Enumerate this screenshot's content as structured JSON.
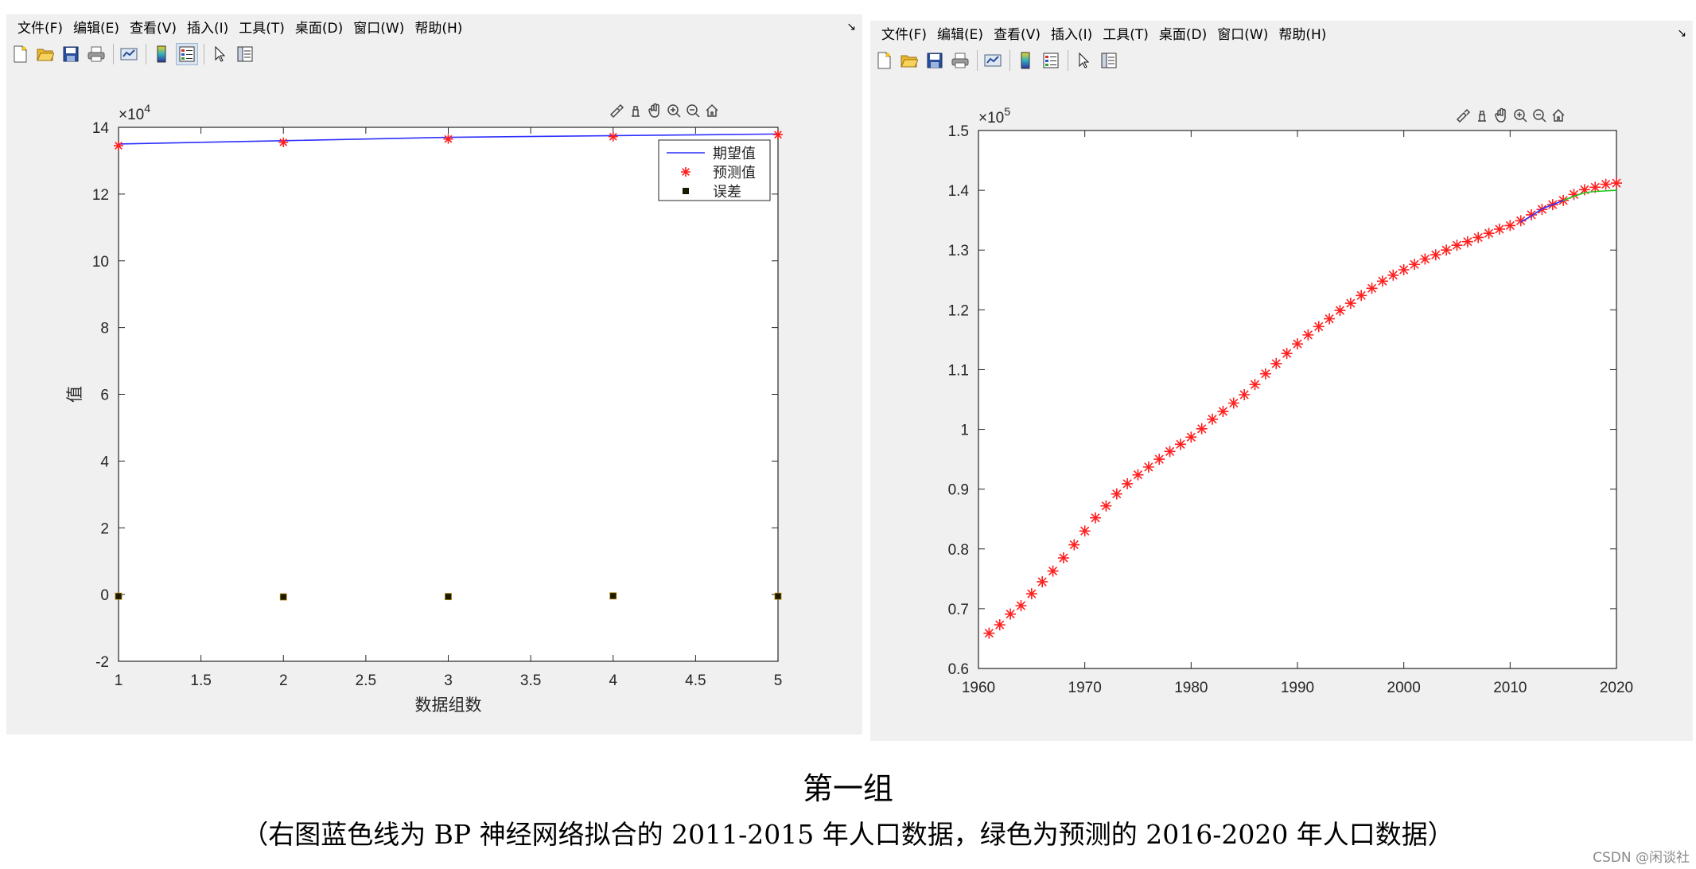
{
  "menu": [
    "文件(F)",
    "编辑(E)",
    "查看(V)",
    "插入(I)",
    "工具(T)",
    "桌面(D)",
    "窗口(W)",
    "帮助(H)"
  ],
  "toolbar_icons": [
    "new-file-icon",
    "open-folder-icon",
    "save-icon",
    "print-icon",
    "link-plot-icon",
    "colorbar-icon",
    "legend-icon",
    "pointer-icon",
    "property-inspector-icon"
  ],
  "axes_toolbar_icons": [
    "brush-icon",
    "data-tips-icon",
    "pan-icon",
    "zoom-in-icon",
    "zoom-out-icon",
    "home-icon"
  ],
  "chart_data": [
    {
      "type": "line",
      "title": "",
      "xlabel": "数据组数",
      "ylabel": "值",
      "y_exponent_label": "×10",
      "y_exponent": "4",
      "xlim": [
        1,
        5
      ],
      "ylim": [
        -2,
        14
      ],
      "x_ticks": [
        1,
        1.5,
        2,
        2.5,
        3,
        3.5,
        4,
        4.5,
        5
      ],
      "x_tick_labels": [
        "1",
        "1.5",
        "2",
        "2.5",
        "3",
        "3.5",
        "4",
        "4.5",
        "5"
      ],
      "y_ticks": [
        -2,
        0,
        2,
        4,
        6,
        8,
        10,
        12,
        14
      ],
      "y_tick_labels": [
        "-2",
        "0",
        "2",
        "4",
        "6",
        "8",
        "10",
        "12",
        "14"
      ],
      "legend_position": "top-right",
      "series": [
        {
          "name": "期望值",
          "style": "line",
          "color": "#2f2fff",
          "x": [
            1,
            2,
            3,
            4,
            5
          ],
          "y": [
            13.5,
            13.6,
            13.7,
            13.75,
            13.8
          ]
        },
        {
          "name": "预测值",
          "style": "asterisk",
          "color": "#ff1f1f",
          "x": [
            1,
            2,
            3,
            4,
            5
          ],
          "y": [
            13.45,
            13.55,
            13.65,
            13.72,
            13.78
          ]
        },
        {
          "name": "误差",
          "style": "square",
          "color": "#1a1a00",
          "x": [
            1,
            2,
            3,
            4,
            5
          ],
          "y": [
            -0.05,
            -0.07,
            -0.06,
            -0.04,
            -0.05
          ]
        }
      ]
    },
    {
      "type": "line",
      "title": "",
      "y_exponent_label": "×10",
      "y_exponent": "5",
      "xlim": [
        1960,
        2020
      ],
      "ylim": [
        0.6,
        1.5
      ],
      "x_ticks": [
        1960,
        1970,
        1980,
        1990,
        2000,
        2010,
        2020
      ],
      "x_tick_labels": [
        "1960",
        "1970",
        "1980",
        "1990",
        "2000",
        "2010",
        "2020"
      ],
      "y_ticks": [
        0.6,
        0.7,
        0.8,
        0.9,
        1.0,
        1.1,
        1.2,
        1.3,
        1.4,
        1.5
      ],
      "y_tick_labels": [
        "0.6",
        "0.7",
        "0.8",
        "0.9",
        "1",
        "1.1",
        "1.2",
        "1.3",
        "1.4",
        "1.5"
      ],
      "series": [
        {
          "style": "asterisk",
          "color": "#ff1f1f",
          "x": [
            1961,
            1962,
            1963,
            1964,
            1965,
            1966,
            1967,
            1968,
            1969,
            1970,
            1971,
            1972,
            1973,
            1974,
            1975,
            1976,
            1977,
            1978,
            1979,
            1980,
            1981,
            1982,
            1983,
            1984,
            1985,
            1986,
            1987,
            1988,
            1989,
            1990,
            1991,
            1992,
            1993,
            1994,
            1995,
            1996,
            1997,
            1998,
            1999,
            2000,
            2001,
            2002,
            2003,
            2004,
            2005,
            2006,
            2007,
            2008,
            2009,
            2010,
            2011,
            2012,
            2013,
            2014,
            2015,
            2016,
            2017,
            2018,
            2019,
            2020
          ],
          "y": [
            0.659,
            0.673,
            0.691,
            0.705,
            0.725,
            0.745,
            0.763,
            0.785,
            0.807,
            0.83,
            0.852,
            0.872,
            0.892,
            0.909,
            0.924,
            0.937,
            0.95,
            0.963,
            0.975,
            0.987,
            1.001,
            1.017,
            1.03,
            1.044,
            1.058,
            1.075,
            1.093,
            1.11,
            1.127,
            1.143,
            1.158,
            1.172,
            1.185,
            1.199,
            1.211,
            1.224,
            1.236,
            1.248,
            1.258,
            1.267,
            1.276,
            1.285,
            1.292,
            1.3,
            1.308,
            1.314,
            1.321,
            1.328,
            1.335,
            1.341,
            1.349,
            1.359,
            1.368,
            1.376,
            1.383,
            1.393,
            1.401,
            1.405,
            1.41,
            1.412
          ]
        },
        {
          "style": "line",
          "color": "#2f2fff",
          "x": [
            2011,
            2012,
            2013,
            2014,
            2015
          ],
          "y": [
            1.347,
            1.357,
            1.369,
            1.376,
            1.383
          ]
        },
        {
          "style": "line",
          "color": "#19c819",
          "x": [
            2015,
            2016,
            2017,
            2018,
            2019,
            2020
          ],
          "y": [
            1.383,
            1.39,
            1.396,
            1.398,
            1.399,
            1.4
          ]
        }
      ]
    }
  ],
  "caption": {
    "title": "第一组",
    "subtitle": "（右图蓝色线为 BP 神经网络拟合的 2011-2015 年人口数据，绿色为预测的 2016-2020 年人口数据）"
  },
  "watermark": "CSDN @闲谈社"
}
